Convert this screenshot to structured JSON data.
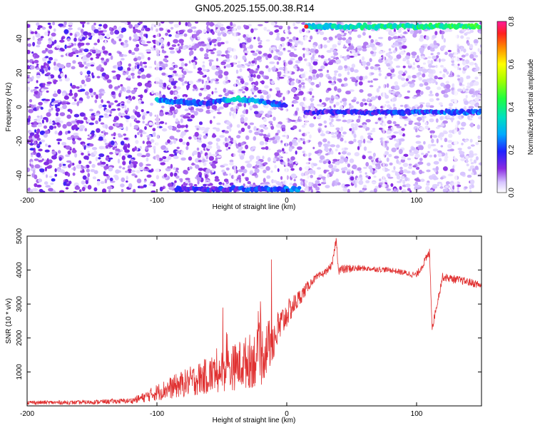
{
  "title": "GN05.2025.155.00.38.R14",
  "colors": {
    "snr_line": "#e03030",
    "spectrogram_low": "#ffffff",
    "spectrogram_mid": "#7a2cf0",
    "spectrogram_high": "#ff1a1a"
  },
  "chart_data": [
    {
      "type": "heatmap",
      "xlabel": "Height of straight line (km)",
      "ylabel": "Frequency (Hz)",
      "xlim": [
        -200,
        150
      ],
      "ylim": [
        -50,
        50
      ],
      "xticks": [
        "-200",
        "-100",
        "0",
        "100"
      ],
      "yticks": [
        "40",
        "20",
        "0",
        "-20",
        "-40"
      ],
      "colorbar": {
        "label": "Normalized spectral amplitude",
        "range": [
          0,
          0.8
        ],
        "ticks": [
          "0.8",
          "0.6",
          "0.4",
          "0.2",
          "0.0"
        ]
      },
      "features": [
        {
          "x": [
            -100,
            -60,
            -40,
            0
          ],
          "y": [
            4,
            2,
            5,
            1
          ],
          "amplitude": [
            0.25,
            0.15,
            0.3,
            0.15
          ]
        },
        {
          "x": [
            15,
            150
          ],
          "y": [
            -3,
            -3
          ],
          "amplitude": [
            0.12,
            0.2
          ]
        },
        {
          "x": [
            -85,
            10
          ],
          "y": [
            -48,
            -48
          ],
          "amplitude": [
            0.12,
            0.2
          ]
        },
        {
          "x": [
            15,
            150
          ],
          "y": [
            47,
            47
          ],
          "amplitude": [
            0.3,
            0.4
          ]
        }
      ]
    },
    {
      "type": "line",
      "xlabel": "Height of straight line (km)",
      "ylabel": "SNR (10 * v/v)",
      "xlim": [
        -200,
        150
      ],
      "ylim": [
        0,
        5000
      ],
      "xticks": [
        "-200",
        "-100",
        "0",
        "100"
      ],
      "yticks": [
        "5000",
        "4000",
        "3000",
        "2000",
        "1000"
      ],
      "series": [
        {
          "x": [
            -200,
            -160,
            -120,
            -110,
            -100,
            -80,
            -60,
            -40,
            -20,
            -10,
            0,
            10,
            20,
            30,
            35,
            38,
            40,
            50,
            60,
            80,
            100,
            110,
            112,
            120,
            140,
            150
          ],
          "y": [
            100,
            100,
            150,
            250,
            400,
            650,
            900,
            1150,
            1450,
            2000,
            2700,
            3200,
            3700,
            3950,
            4150,
            4900,
            4000,
            4050,
            4050,
            4000,
            3850,
            4500,
            2300,
            3800,
            3650,
            3550
          ],
          "noise": [
            60,
            60,
            80,
            150,
            250,
            400,
            550,
            700,
            900,
            700,
            400,
            250,
            120,
            100,
            100,
            150,
            150,
            120,
            80,
            80,
            100,
            150,
            120,
            120,
            120,
            120
          ]
        }
      ]
    }
  ]
}
